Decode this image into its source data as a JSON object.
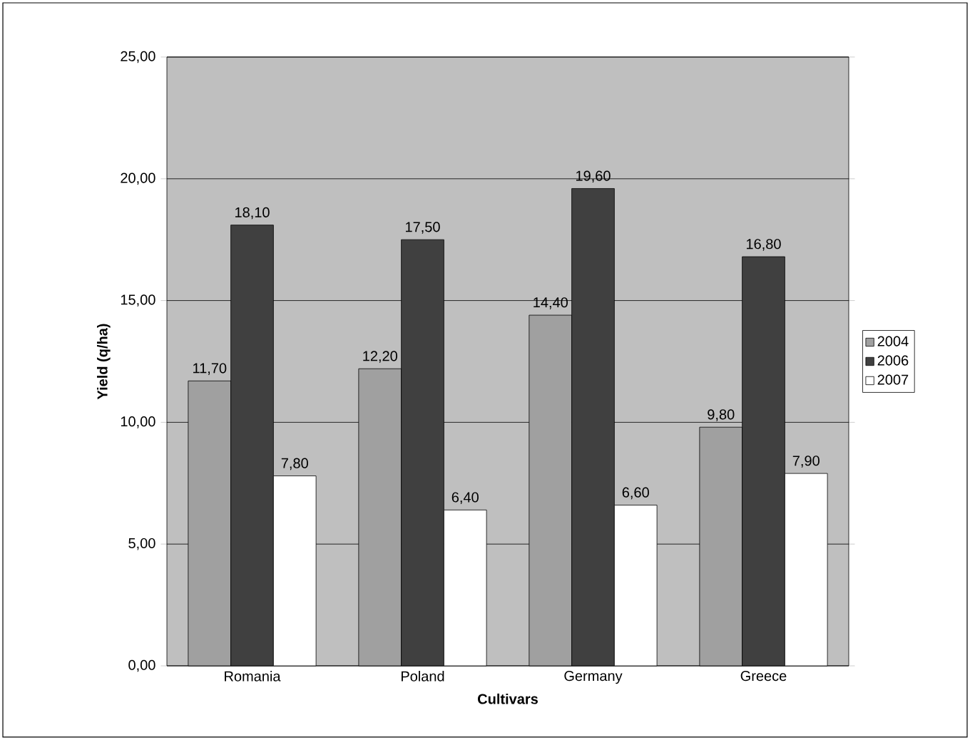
{
  "chart_data": {
    "type": "bar",
    "xlabel": "Cultivars",
    "ylabel": "Yield (q/ha)",
    "categories": [
      "Romania",
      "Poland",
      "Germany",
      "Greece"
    ],
    "series": [
      {
        "name": "2004",
        "color": "#a0a0a0",
        "values": [
          11.7,
          12.2,
          14.4,
          9.8
        ],
        "value_labels": [
          "11,70",
          "12,20",
          "14,40",
          "9,80"
        ]
      },
      {
        "name": "2006",
        "color": "#404040",
        "values": [
          18.1,
          17.5,
          19.6,
          16.8
        ],
        "value_labels": [
          "18,10",
          "17,50",
          "19,60",
          "16,80"
        ]
      },
      {
        "name": "2007",
        "color": "#ffffff",
        "values": [
          7.8,
          6.4,
          6.6,
          7.9
        ],
        "value_labels": [
          "7,80",
          "6,40",
          "6,60",
          "7,90"
        ]
      }
    ],
    "ylim": [
      0,
      25
    ],
    "yticks": [
      {
        "value": 0,
        "label": "0,00"
      },
      {
        "value": 5,
        "label": "5,00"
      },
      {
        "value": 10,
        "label": "10,00"
      },
      {
        "value": 15,
        "label": "15,00"
      },
      {
        "value": 20,
        "label": "20,00"
      },
      {
        "value": 25,
        "label": "25,00"
      }
    ],
    "grid": "y",
    "legend": "right"
  }
}
